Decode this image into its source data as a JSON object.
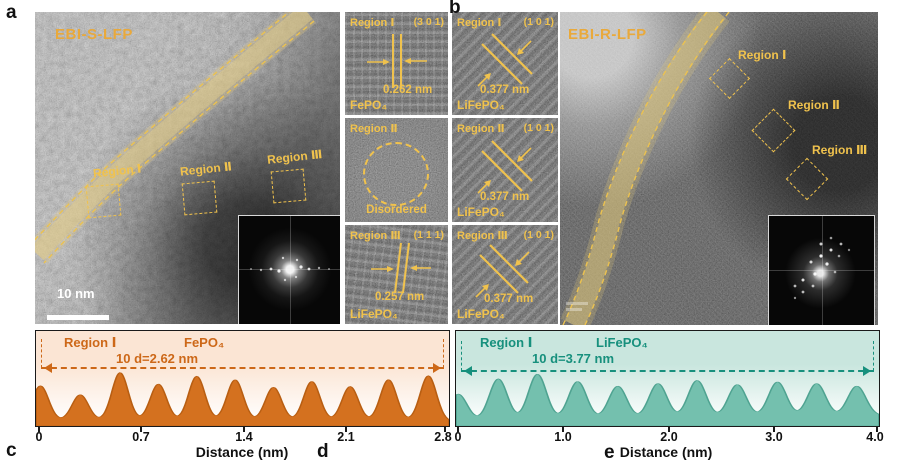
{
  "colors": {
    "gold": "#f0c24d",
    "gold_bright": "#e9a93b",
    "orange_fill": "#d4711f",
    "orange_text": "#cd6818",
    "orange_bg": "#fbe5d4",
    "teal_fill": "#74c0ae",
    "teal_stroke": "#4fa391",
    "teal_text": "#17907d",
    "teal_bg": "#c9e6de"
  },
  "figure": {
    "panel_letters": {
      "a": "a",
      "b": "b",
      "c": "c",
      "d": "d",
      "e": "e"
    },
    "panel_a": {
      "title": "EBI-S-LFP",
      "scale_bar": "10 nm",
      "region_labels": [
        "Region Ⅰ",
        "Region Ⅱ",
        "Region Ⅲ"
      ]
    },
    "panel_b": {
      "title": "EBI-R-LFP",
      "region_labels": [
        "Region Ⅰ",
        "Region Ⅱ",
        "Region Ⅲ"
      ]
    },
    "insets_a": [
      {
        "region": "Region Ⅰ",
        "plane": "(3 0 1)",
        "spacing": "0.262 nm",
        "phase": "FePO₄"
      },
      {
        "region": "Region Ⅱ",
        "note": "Disordered"
      },
      {
        "region": "Region Ⅲ",
        "plane": "(1 1 1)",
        "spacing": "0.257 nm",
        "phase": "LiFePO₄"
      }
    ],
    "insets_b": [
      {
        "region": "Region Ⅰ",
        "plane": "(1 0 1)",
        "spacing": "0.377 nm",
        "phase": "LiFePO₄"
      },
      {
        "region": "Region Ⅱ",
        "plane": "(1 0 1)",
        "spacing": "0.377 nm",
        "phase": "LiFePO₄"
      },
      {
        "region": "Region Ⅲ",
        "plane": "(1 0 1)",
        "spacing": "0.377 nm",
        "phase": "LiFePO₄"
      }
    ]
  },
  "chart_data": [
    {
      "id": "c",
      "type": "area",
      "region": "Region Ⅰ",
      "phase": "FePO₄",
      "annotation": "10 d=2.62 nm",
      "d_spacing_nm": 0.262,
      "n_spacings": 10,
      "xlabel": "Distance (nm)",
      "xlim": [
        0,
        2.8
      ],
      "xticks": [
        {
          "label": "0",
          "value": 0
        },
        {
          "label": "0.7",
          "value": 0.7
        },
        {
          "label": "1.4",
          "value": 1.4
        },
        {
          "label": "2.1",
          "value": 2.1
        },
        {
          "label": "2.8",
          "value": 2.8
        }
      ],
      "peak_centers_nm": [
        0.03,
        0.3,
        0.57,
        0.83,
        1.09,
        1.35,
        1.61,
        1.87,
        2.13,
        2.39,
        2.66
      ],
      "peak_heights": [
        0.7,
        0.52,
        0.97,
        0.74,
        0.9,
        0.83,
        0.68,
        0.8,
        0.7,
        0.84,
        0.92
      ],
      "peak_sigma_nm": 0.055,
      "amp_rel": 52,
      "baseline_rel": [
        94,
        95
      ],
      "fill": "#d4711f",
      "stroke": "#b85e12",
      "text": "#cd6818",
      "bg": "#fbe5d4"
    },
    {
      "id": "e",
      "type": "area",
      "region": "Region Ⅰ",
      "phase": "LiFePO₄",
      "annotation": "10 d=3.77 nm",
      "d_spacing_nm": 0.377,
      "n_spacings": 10,
      "xlabel": "Distance (nm)",
      "xlim": [
        0,
        4.0
      ],
      "xticks": [
        {
          "label": "0",
          "value": 0
        },
        {
          "label": "1.0",
          "value": 1.0
        },
        {
          "label": "2.0",
          "value": 2.0
        },
        {
          "label": "3.0",
          "value": 3.0
        },
        {
          "label": "4.0",
          "value": 4.0
        }
      ],
      "peak_centers_nm": [
        0.02,
        0.4,
        0.77,
        1.15,
        1.53,
        1.91,
        2.28,
        2.66,
        3.04,
        3.41,
        3.79
      ],
      "peak_heights": [
        0.52,
        0.8,
        0.88,
        0.73,
        0.63,
        0.67,
        0.72,
        0.63,
        0.67,
        0.63,
        0.57
      ],
      "peak_sigma_nm": 0.085,
      "amp_rel": 55,
      "baseline_rel": [
        95,
        89
      ],
      "fill": "#74c0ae",
      "stroke": "#4fa391",
      "text": "#17907d",
      "bg": "#c9e6de"
    }
  ]
}
